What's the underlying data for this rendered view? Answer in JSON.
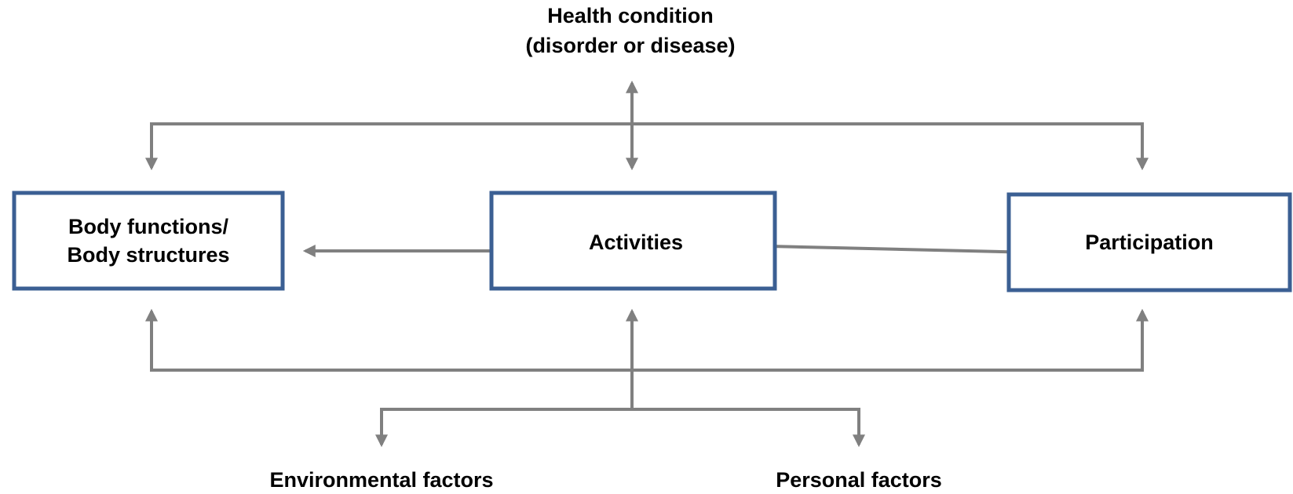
{
  "nodes": [
    {
      "id": "health",
      "lines": [
        "Health condition",
        "(disorder or disease)"
      ]
    },
    {
      "id": "body",
      "lines": [
        "Body functions/",
        "Body structures"
      ]
    },
    {
      "id": "activities",
      "lines": [
        "Activities"
      ]
    },
    {
      "id": "participation",
      "lines": [
        "Participation"
      ]
    },
    {
      "id": "environmental",
      "lines": [
        "Environmental factors"
      ]
    },
    {
      "id": "personal",
      "lines": [
        "Personal factors"
      ]
    }
  ]
}
